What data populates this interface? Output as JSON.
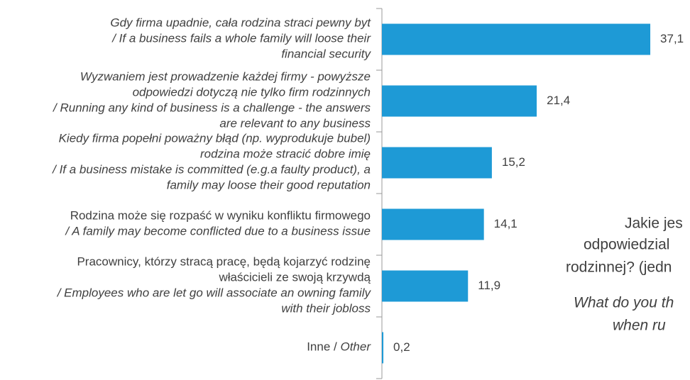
{
  "chart_data": {
    "type": "bar",
    "orientation": "horizontal",
    "categories": [
      [
        [
          {
            "text": "Gdy firma upadnie, cała rodzina straci pewny byt",
            "italic": true
          }
        ],
        [
          {
            "text": "/ If a business fails a whole family will loose their",
            "italic": true
          }
        ],
        [
          {
            "text": "financial security",
            "italic": true
          }
        ]
      ],
      [
        [
          {
            "text": "Wyzwaniem jest prowadzenie każdej firmy - powyższe",
            "italic": true
          }
        ],
        [
          {
            "text": "odpowiedzi dotyczą nie tylko firm rodzinnych",
            "italic": true
          }
        ],
        [
          {
            "text": "/ Running any kind of business is a challenge - the answers",
            "italic": true
          }
        ],
        [
          {
            "text": "are relevant to any business",
            "italic": true
          }
        ]
      ],
      [
        [
          {
            "text": "Kiedy firma popełni poważny błąd (np. wyprodukuje bubel)",
            "italic": true
          }
        ],
        [
          {
            "text": "rodzina może stracić dobre imię",
            "italic": true
          }
        ],
        [
          {
            "text": "/ If a business mistake is committed (e.g.a faulty product), a",
            "italic": true
          }
        ],
        [
          {
            "text": "family may loose their good reputation",
            "italic": true
          }
        ]
      ],
      [
        [
          {
            "text": "Rodzina może się rozpaść w wyniku konfliktu firmowego",
            "italic": false
          }
        ],
        [
          {
            "text": "/ A family may become conflicted due to a business issue",
            "italic": true
          }
        ]
      ],
      [
        [
          {
            "text": "Pracownicy, którzy stracą pracę, będą kojarzyć rodzinę",
            "italic": false
          }
        ],
        [
          {
            "text": "właścicieli ze swoją krzywdą",
            "italic": false
          }
        ],
        [
          {
            "text": "/ Employees who are let go will associate an owning family",
            "italic": true
          }
        ],
        [
          {
            "text": "with their jobloss",
            "italic": true
          }
        ]
      ],
      [
        [
          {
            "text": "Inne / ",
            "italic": false
          },
          {
            "text": "Other",
            "italic": true
          }
        ]
      ]
    ],
    "values": [
      37.1,
      21.4,
      15.2,
      14.1,
      11.9,
      0.2
    ],
    "value_labels": [
      "37,1",
      "21,4",
      "15,2",
      "14,1",
      "11,9",
      "0,2"
    ],
    "color": "#1e9ad6",
    "xlim": [
      0,
      40
    ],
    "annotations": [
      {
        "text": "Jakie jes",
        "italic": false
      },
      {
        "text": "odpowiedzial",
        "italic": false
      },
      {
        "text": "rodzinnej? (jedn",
        "italic": false
      },
      {
        "text": "What do you th",
        "italic": true
      },
      {
        "text": "when ru",
        "italic": true
      }
    ]
  }
}
